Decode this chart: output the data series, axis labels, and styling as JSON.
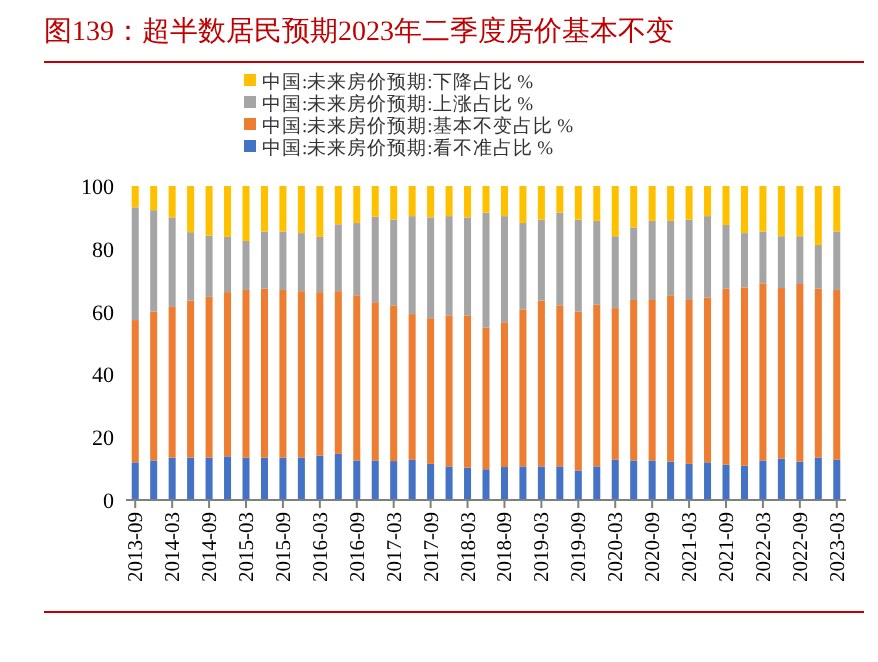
{
  "chart_data": {
    "type": "bar",
    "stacked": true,
    "title": "图139：超半数居民预期2023年二季度房价基本不变",
    "categories": [
      "2013-09",
      null,
      "2014-03",
      null,
      "2014-09",
      null,
      "2015-03",
      null,
      "2015-09",
      null,
      "2016-03",
      null,
      "2016-09",
      null,
      "2017-03",
      null,
      "2017-09",
      null,
      "2018-03",
      null,
      "2018-09",
      null,
      "2019-03",
      null,
      "2019-09",
      null,
      "2020-03",
      null,
      "2020-09",
      null,
      "2021-03",
      null,
      "2021-09",
      null,
      "2022-03",
      null,
      "2022-09",
      null,
      "2023-03"
    ],
    "series": [
      {
        "name": "中国:未来房价预期:看不准占比 %",
        "color": "#4472c4",
        "values": [
          12,
          12.6,
          13.5,
          13.5,
          13.5,
          13.9,
          13.5,
          13.5,
          13.5,
          13.5,
          14.1,
          14.7,
          12.6,
          12.6,
          12.4,
          12.8,
          11.5,
          10.7,
          10.3,
          9.8,
          10.5,
          10.7,
          10.7,
          10.7,
          9.4,
          10.7,
          12.8,
          12.6,
          12.6,
          12.2,
          11.5,
          12,
          11.3,
          10.9,
          12.6,
          13.2,
          12.2,
          13.5,
          12.8
        ]
      },
      {
        "name": "中国:未来房价预期:基本不变占比 %",
        "color": "#ed7d31",
        "values": [
          45.3,
          47.4,
          48,
          50,
          51.2,
          52.3,
          53.4,
          53.8,
          53.4,
          53,
          52.1,
          51.8,
          52.6,
          50.4,
          49.6,
          46.4,
          46.4,
          48.1,
          48.5,
          45.1,
          46.1,
          50,
          52.8,
          51.3,
          50.6,
          51.5,
          48.3,
          51.1,
          51.1,
          53,
          52.2,
          52.5,
          56,
          56.8,
          56.4,
          54.3,
          56.6,
          53.8,
          54.1
        ]
      },
      {
        "name": "中国:未来房价预期:上涨占比 %",
        "color": "#a5a5a5",
        "values": [
          35.9,
          32.3,
          28.5,
          21.8,
          19.5,
          17.6,
          15.6,
          18.2,
          18.6,
          18.5,
          17.6,
          21.3,
          23,
          27.2,
          27.3,
          31.2,
          32.1,
          31.6,
          31.2,
          36.6,
          33.8,
          27.5,
          25.8,
          29.5,
          29.3,
          26.7,
          22.9,
          23.1,
          25.2,
          23.7,
          25.6,
          25.9,
          20.3,
          17.3,
          16.5,
          16.5,
          15.2,
          13.9,
          18.6
        ]
      },
      {
        "name": "中国:未来房价预期:下降占比 %",
        "color": "#ffc000",
        "values": [
          6.8,
          7.7,
          10,
          14.7,
          15.8,
          16.2,
          17.5,
          14.5,
          14.5,
          15,
          16.2,
          12.2,
          11.8,
          9.8,
          10.7,
          9.6,
          10,
          9.6,
          10,
          8.5,
          9.6,
          11.8,
          10.7,
          8.5,
          10.7,
          11.1,
          16,
          13.2,
          11.1,
          11.1,
          10.7,
          9.6,
          12.4,
          15,
          14.5,
          16,
          16,
          18.8,
          14.5
        ]
      }
    ],
    "ylim": [
      0,
      100
    ],
    "yticks": [
      0,
      20,
      40,
      60,
      80,
      100
    ],
    "grid": false,
    "legend": "top"
  }
}
